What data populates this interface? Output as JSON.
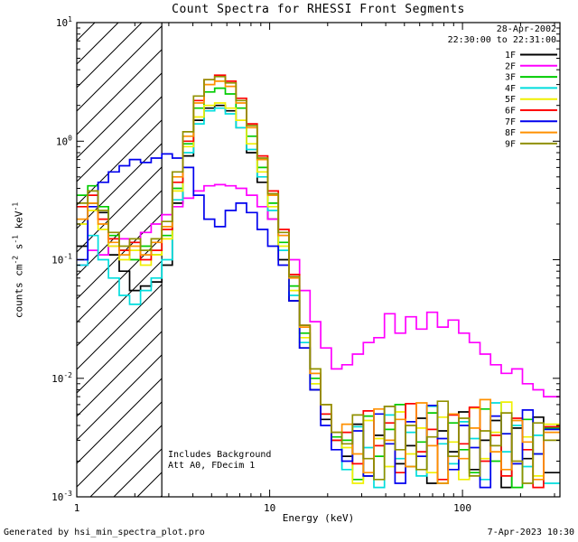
{
  "header": {
    "date_line1": "28-Apr-2002",
    "date_line2": "22:30:00 to 22:31:00"
  },
  "annotations": {
    "background": "Includes Background",
    "attenuator": "Att A0, FDecim 1"
  },
  "footer": {
    "generated_by": "Generated by hsi_min_spectra_plot.pro",
    "print_date": "7-Apr-2023 10:30"
  },
  "chart_data": {
    "type": "line",
    "subtype": "step-histogram",
    "title": "Count Spectra for RHESSI Front Segments",
    "xlabel": "Energy (keV)",
    "ylabel": "counts cm^-2 s^-1 keV^-1",
    "xscale": "log",
    "yscale": "log",
    "xlim": [
      1,
      320
    ],
    "ylim": [
      0.001,
      10
    ],
    "grid": false,
    "legend_position": "top-right",
    "x_ticks": [
      1,
      10,
      100
    ],
    "x_tick_labels": [
      "1",
      "10",
      "100"
    ],
    "y_ticks": [
      0.001,
      0.01,
      0.1,
      1,
      10
    ],
    "y_tick_labels": [
      "10^-3",
      "10^-2",
      "10^-1",
      "10^0",
      "10^1"
    ],
    "hatch_region": {
      "xmin": 1,
      "xmax": 2.76
    },
    "energy_bin_edges": [
      1.0,
      1.14,
      1.29,
      1.46,
      1.66,
      1.88,
      2.14,
      2.43,
      2.76,
      3.13,
      3.55,
      4.03,
      4.57,
      5.19,
      5.89,
      6.69,
      7.59,
      8.62,
      9.78,
      11.1,
      12.6,
      14.3,
      16.2,
      18.4,
      20.9,
      23.7,
      26.9,
      30.6,
      34.7,
      39.4,
      44.7,
      50.7,
      57.6,
      65.4,
      74.2,
      84.2,
      95.6,
      108.5,
      123.2,
      139.8,
      158.7,
      180.1,
      204.5,
      232.1,
      263.4,
      320
    ],
    "series": [
      {
        "name": "1F",
        "color": "#000000",
        "values": [
          0.13,
          0.3,
          0.25,
          0.11,
          0.08,
          0.055,
          0.06,
          0.065,
          0.09,
          0.3,
          0.75,
          1.5,
          1.9,
          2.0,
          1.8,
          1.3,
          0.8,
          0.45,
          0.22,
          0.1,
          0.045,
          0.018,
          0.008,
          0.0045,
          0.003,
          0.0022,
          0.0041,
          0.0015,
          0.0033,
          0.0058,
          0.0019,
          0.0027,
          0.0046,
          0.0013,
          0.0036,
          0.0024,
          0.0052,
          0.0017,
          0.003,
          0.0044,
          0.0012,
          0.0038,
          0.0021,
          0.0047,
          0.0016
        ]
      },
      {
        "name": "2F",
        "color": "#ff00ff",
        "values": [
          0.09,
          0.12,
          0.11,
          0.13,
          0.15,
          0.14,
          0.17,
          0.2,
          0.24,
          0.28,
          0.33,
          0.38,
          0.42,
          0.43,
          0.42,
          0.4,
          0.35,
          0.28,
          0.22,
          0.16,
          0.1,
          0.055,
          0.03,
          0.018,
          0.012,
          0.013,
          0.016,
          0.02,
          0.022,
          0.035,
          0.024,
          0.033,
          0.026,
          0.036,
          0.027,
          0.031,
          0.024,
          0.02,
          0.016,
          0.013,
          0.011,
          0.012,
          0.009,
          0.008,
          0.007
        ]
      },
      {
        "name": "3F",
        "color": "#00cc00",
        "values": [
          0.35,
          0.42,
          0.28,
          0.16,
          0.12,
          0.1,
          0.13,
          0.11,
          0.16,
          0.4,
          0.95,
          1.9,
          2.6,
          2.8,
          2.5,
          1.9,
          1.1,
          0.6,
          0.3,
          0.14,
          0.06,
          0.024,
          0.01,
          0.005,
          0.0032,
          0.003,
          0.0014,
          0.0048,
          0.0022,
          0.0037,
          0.006,
          0.0018,
          0.0029,
          0.0051,
          0.0013,
          0.0042,
          0.0025,
          0.0016,
          0.0055,
          0.002,
          0.0034,
          0.0012,
          0.0045,
          0.0023,
          0.0038
        ]
      },
      {
        "name": "4F",
        "color": "#00dddd",
        "values": [
          0.09,
          0.16,
          0.1,
          0.07,
          0.05,
          0.042,
          0.055,
          0.07,
          0.1,
          0.32,
          0.8,
          1.4,
          1.8,
          1.9,
          1.7,
          1.3,
          0.85,
          0.5,
          0.26,
          0.12,
          0.05,
          0.02,
          0.009,
          0.005,
          0.003,
          0.0017,
          0.0039,
          0.0026,
          0.0012,
          0.0049,
          0.0021,
          0.0035,
          0.0015,
          0.0058,
          0.0028,
          0.0019,
          0.0043,
          0.0031,
          0.0014,
          0.0062,
          0.0024,
          0.004,
          0.0018,
          0.0033,
          0.0013
        ]
      },
      {
        "name": "5F",
        "color": "#f0f000",
        "values": [
          0.2,
          0.26,
          0.18,
          0.13,
          0.1,
          0.12,
          0.09,
          0.11,
          0.15,
          0.38,
          0.9,
          1.6,
          2.0,
          2.1,
          1.9,
          1.5,
          0.95,
          0.55,
          0.28,
          0.13,
          0.055,
          0.022,
          0.009,
          0.005,
          0.003,
          0.0026,
          0.0013,
          0.0044,
          0.0031,
          0.0018,
          0.0052,
          0.0023,
          0.0038,
          0.0016,
          0.0047,
          0.0029,
          0.0014,
          0.0056,
          0.0021,
          0.0035,
          0.0063,
          0.0019,
          0.0032,
          0.0015,
          0.0041
        ]
      },
      {
        "name": "6F",
        "color": "#ff0000",
        "values": [
          0.28,
          0.35,
          0.22,
          0.15,
          0.12,
          0.14,
          0.1,
          0.12,
          0.18,
          0.45,
          1.0,
          2.2,
          3.3,
          3.6,
          3.2,
          2.3,
          1.4,
          0.75,
          0.38,
          0.18,
          0.075,
          0.028,
          0.011,
          0.005,
          0.003,
          0.0035,
          0.0019,
          0.0053,
          0.0027,
          0.0042,
          0.0016,
          0.0061,
          0.0024,
          0.0037,
          0.0014,
          0.0049,
          0.0028,
          0.0057,
          0.002,
          0.0033,
          0.0015,
          0.0046,
          0.0025,
          0.0012,
          0.0039
        ]
      },
      {
        "name": "7F",
        "color": "#0000ee",
        "values": [
          0.1,
          0.28,
          0.45,
          0.55,
          0.62,
          0.7,
          0.66,
          0.72,
          0.78,
          0.72,
          0.6,
          0.35,
          0.22,
          0.19,
          0.26,
          0.3,
          0.25,
          0.18,
          0.13,
          0.09,
          0.045,
          0.018,
          0.008,
          0.004,
          0.0025,
          0.002,
          0.0036,
          0.0015,
          0.005,
          0.0028,
          0.0013,
          0.0043,
          0.0022,
          0.0059,
          0.0031,
          0.0017,
          0.004,
          0.0026,
          0.0012,
          0.0048,
          0.0034,
          0.0019,
          0.0054,
          0.0023,
          0.0037
        ]
      },
      {
        "name": "8F",
        "color": "#ff9000",
        "values": [
          0.22,
          0.3,
          0.2,
          0.14,
          0.11,
          0.13,
          0.11,
          0.14,
          0.19,
          0.5,
          1.1,
          2.1,
          3.0,
          3.2,
          2.9,
          2.1,
          1.3,
          0.7,
          0.35,
          0.16,
          0.07,
          0.027,
          0.011,
          0.006,
          0.0035,
          0.0041,
          0.0023,
          0.0016,
          0.0055,
          0.003,
          0.0045,
          0.0018,
          0.0062,
          0.0027,
          0.0013,
          0.005,
          0.0021,
          0.0038,
          0.0066,
          0.0024,
          0.0017,
          0.0044,
          0.0029,
          0.0014,
          0.0035
        ]
      },
      {
        "name": "9F",
        "color": "#909000",
        "values": [
          0.3,
          0.38,
          0.26,
          0.17,
          0.13,
          0.15,
          0.12,
          0.15,
          0.21,
          0.55,
          1.2,
          2.4,
          3.3,
          3.5,
          3.1,
          2.2,
          1.35,
          0.72,
          0.36,
          0.17,
          0.072,
          0.028,
          0.012,
          0.006,
          0.0035,
          0.0028,
          0.0049,
          0.0021,
          0.0014,
          0.0058,
          0.0025,
          0.004,
          0.0017,
          0.0032,
          0.0064,
          0.0022,
          0.0046,
          0.0015,
          0.0036,
          0.0027,
          0.0051,
          0.002,
          0.0013,
          0.0042,
          0.003
        ]
      }
    ]
  }
}
